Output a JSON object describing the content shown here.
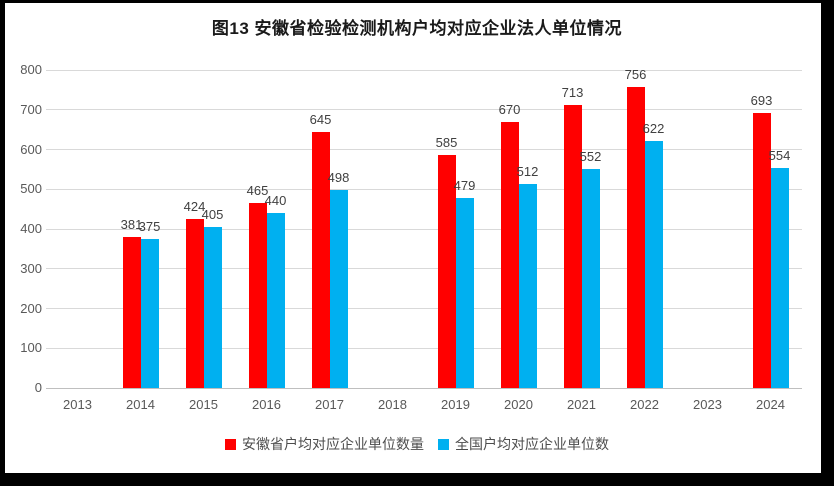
{
  "title": "图13  安徽省检验检测机构户均对应企业法人单位情况",
  "chart_data": {
    "type": "bar",
    "title": "图13  安徽省检验检测机构户均对应企业法人单位情况",
    "categories": [
      "2013",
      "2014",
      "2015",
      "2016",
      "2017",
      "2018",
      "2019",
      "2020",
      "2021",
      "2022",
      "2023",
      "2024"
    ],
    "series": [
      {
        "name": "安徽省户均对应企业单位数量",
        "color": "#ff0000",
        "values": [
          null,
          381,
          424,
          465,
          645,
          null,
          585,
          670,
          713,
          756,
          null,
          693
        ]
      },
      {
        "name": "全国户均对应企业单位数",
        "color": "#00b0f0",
        "values": [
          null,
          375,
          405,
          440,
          498,
          null,
          479,
          512,
          552,
          622,
          null,
          554
        ]
      }
    ],
    "xlabel": "",
    "ylabel": "",
    "ylim": [
      0,
      800
    ],
    "ytick_step": 100,
    "yticks": [
      0,
      100,
      200,
      300,
      400,
      500,
      600,
      700,
      800
    ],
    "grid": true,
    "legend_position": "bottom",
    "data_labels": true,
    "colors": {
      "gridline": "#d9d9d9",
      "axis_line": "#bfbfbf",
      "axis_label": "#595959",
      "data_label": "#404040",
      "title": "#1a1a1a",
      "frame": "#000000"
    }
  }
}
